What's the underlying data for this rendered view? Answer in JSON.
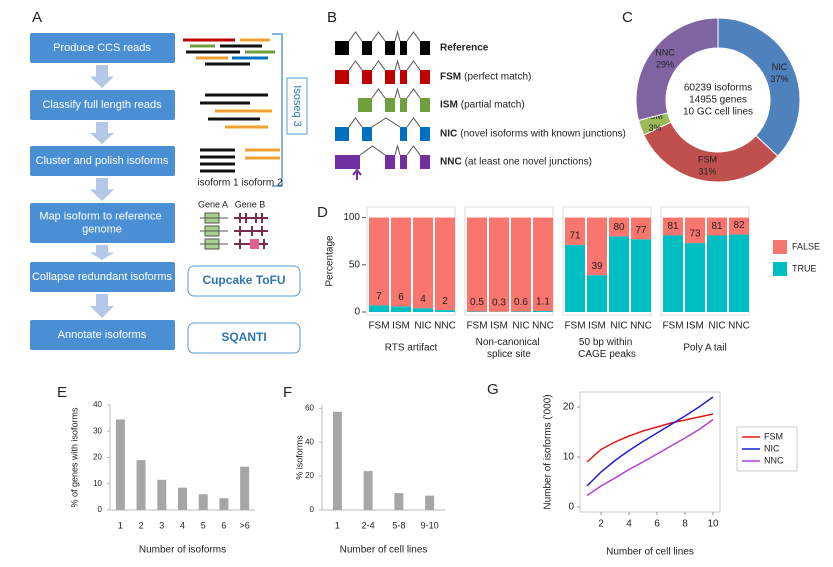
{
  "panel_labels": [
    "A",
    "B",
    "C",
    "D",
    "E",
    "F",
    "G"
  ],
  "flowchart": {
    "steps": [
      "Produce CCS reads",
      "Classify full length reads",
      "Cluster and polish isoforms",
      "Map isoform to reference genome",
      "Collapse redundant isoforms",
      "Annotate isoforms"
    ],
    "tools": [
      "Cupcake ToFU",
      "SQANTI"
    ],
    "pipeline_label": "Isoseq 3",
    "cluster_labels": [
      "isoform 1",
      "isoform 2"
    ],
    "gene_labels": [
      "Gene A",
      "Gene B"
    ]
  },
  "isoform_classes": [
    {
      "abbr": "Reference",
      "color": "#000000"
    },
    {
      "abbr": "FSM",
      "description": "(perfect match)",
      "color": "#c00000"
    },
    {
      "abbr": "ISM",
      "description": "(partial match)",
      "color": "#70a03c"
    },
    {
      "abbr": "NIC",
      "description": "(novel isoforms with known junctions)",
      "color": "#0070c0"
    },
    {
      "abbr": "NNC",
      "description": "(at least one novel junctions)",
      "color": "#7030a0"
    }
  ],
  "chart_data": [
    {
      "type": "pie",
      "donut": true,
      "categories": [
        "NIC",
        "FSM",
        "ISM",
        "NNC"
      ],
      "values": [
        37,
        31,
        3,
        29
      ],
      "value_labels": [
        "37%",
        "31%",
        "3%",
        "29%"
      ],
      "colors": [
        "#4f81bd",
        "#c0504d",
        "#9bbb59",
        "#8064a2"
      ],
      "center_text": [
        "60239 isoforms",
        "14955 genes",
        "10 GC cell lines"
      ]
    },
    {
      "type": "faceted_stacked_bar",
      "ylabel": "Percentage",
      "categories": [
        "FSM",
        "ISM",
        "NIC",
        "NNC"
      ],
      "ylim": [
        0,
        108
      ],
      "yticks": [
        0,
        50,
        100
      ],
      "series": [
        {
          "name": "FALSE",
          "color": "#f8766d"
        },
        {
          "name": "TRUE",
          "color": "#00bfc4"
        }
      ],
      "facets": [
        {
          "title": "RTS artifact",
          "values": [
            [
              93,
              94,
              96,
              98
            ],
            [
              7,
              6,
              4,
              2
            ]
          ]
        },
        {
          "title": "Non-canonical splice site",
          "values": [
            [
              99.5,
              99.7,
              99.4,
              98.9
            ],
            [
              0.5,
              0.3,
              0.6,
              1.1
            ]
          ]
        },
        {
          "title": "50 bp within CAGE peaks",
          "values": [
            [
              29,
              61,
              20,
              23
            ],
            [
              71,
              39,
              80,
              77
            ]
          ]
        },
        {
          "title": "Poly A tail",
          "values": [
            [
              19,
              27,
              19,
              18
            ],
            [
              81,
              73,
              81,
              82
            ]
          ]
        }
      ]
    },
    {
      "type": "bar",
      "ylabel": "% of genes with isoforms",
      "xlabel": "Number of isoforms",
      "categories": [
        "1",
        "2",
        "3",
        "4",
        "5",
        "6",
        ">6"
      ],
      "values": [
        34.5,
        19,
        11.5,
        8.5,
        6,
        4.5,
        16.5
      ],
      "color": "#a6a6a6",
      "ylim": [
        0,
        40
      ],
      "yticks": [
        0,
        10,
        20,
        30,
        40
      ]
    },
    {
      "type": "bar",
      "ylabel": "% isoforms",
      "xlabel": "Number of cell lines",
      "categories": [
        "1",
        "2-4",
        "5-8",
        "9-10"
      ],
      "values": [
        58,
        23,
        10,
        8.5
      ],
      "color": "#a6a6a6",
      "ylim": [
        0,
        62
      ],
      "yticks": [
        0,
        20,
        40,
        60
      ]
    },
    {
      "type": "line",
      "ylabel": "Number of isoforms ('000)",
      "xlabel": "Number of cell lines",
      "x": [
        1,
        2,
        3,
        4,
        5,
        6,
        7,
        8,
        9,
        10
      ],
      "series": [
        {
          "name": "FSM",
          "color": "#e31a1c",
          "values": [
            9,
            11.5,
            13,
            14.2,
            15.2,
            16,
            16.8,
            17.4,
            18,
            18.6
          ]
        },
        {
          "name": "NIC",
          "color": "#1f1fcf",
          "values": [
            4.2,
            7,
            9.3,
            11.3,
            13.1,
            14.8,
            16.5,
            18.2,
            20,
            22
          ]
        },
        {
          "name": "NNC",
          "color": "#b040d0",
          "values": [
            2.3,
            4.2,
            5.8,
            7.5,
            9,
            10.6,
            12.2,
            13.8,
            15.5,
            17.5
          ]
        }
      ],
      "xlim": [
        0.5,
        10.5
      ],
      "ylim": [
        -1,
        23
      ],
      "xticks": [
        2,
        4,
        6,
        8,
        10
      ],
      "yticks": [
        0,
        10,
        20
      ],
      "legend": "right"
    }
  ]
}
